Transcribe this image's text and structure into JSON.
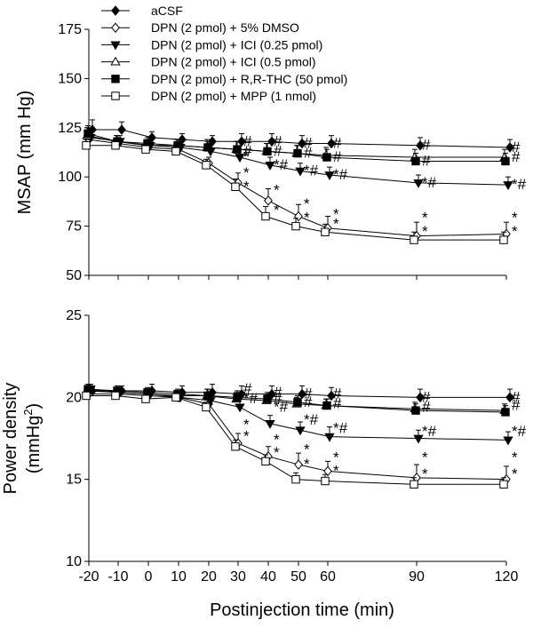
{
  "chart_data": {
    "type": "line",
    "shared_x": [
      -20,
      -10,
      0,
      10,
      20,
      30,
      40,
      50,
      60,
      90,
      120
    ],
    "x_tick_labels": [
      "-20",
      "-10",
      "0",
      "10",
      "20",
      "30",
      "40",
      "50",
      "60",
      "90",
      "120"
    ],
    "xlabel": "Postinjection time (min)",
    "legend": [
      {
        "name": "aCSF",
        "marker": "filled-diamond"
      },
      {
        "name": "DPN (2 pmol) + 5% DMSO",
        "marker": "open-diamond"
      },
      {
        "name": "DPN (2 pmol) + ICI (0.25 pmol)",
        "marker": "filled-triangle-down"
      },
      {
        "name": "DPN (2 pmol) + ICI (0.5 pmol)",
        "marker": "open-triangle-up"
      },
      {
        "name": "DPN (2 pmol) + R,R-THC (50 pmol)",
        "marker": "filled-square"
      },
      {
        "name": "DPN (2 pmol) + MPP (1 nmol)",
        "marker": "open-square"
      }
    ],
    "panels": [
      {
        "ylabel": "MSAP (mm Hg)",
        "ylabel_lines": [
          "MSAP (mm Hg)"
        ],
        "ylim": [
          50,
          175
        ],
        "y_ticks": [
          50,
          75,
          100,
          125,
          150,
          175
        ],
        "y_tick_labels": [
          "50",
          "75",
          "100",
          "125",
          "150",
          "175"
        ],
        "series": [
          {
            "name": "aCSF",
            "values": [
              124,
              124,
              120,
              119,
              118,
              118,
              118,
              117,
              117,
              116,
              115
            ],
            "err": [
              5,
              4,
              3,
              3,
              3,
              4,
              4,
              4,
              4,
              4,
              4
            ]
          },
          {
            "name": "DPN (2 pmol) + 5% DMSO",
            "values": [
              119,
              117,
              115,
              114,
              107,
              97,
              88,
              80,
              74,
              70,
              71
            ],
            "err": [
              4,
              3,
              3,
              3,
              3,
              5,
              6,
              6,
              6,
              7,
              6
            ]
          },
          {
            "name": "DPN (2 pmol) + ICI (0.25 pmol)",
            "values": [
              120,
              118,
              116,
              115,
              113,
              110,
              106,
              103,
              101,
              97,
              96
            ],
            "err": [
              4,
              3,
              3,
              3,
              4,
              4,
              4,
              4,
              4,
              4,
              4
            ]
          },
          {
            "name": "DPN (2 pmol) + ICI (0.5 pmol)",
            "values": [
              121,
              118,
              116,
              116,
              115,
              114,
              113,
              112,
              111,
              110,
              110
            ],
            "err": [
              4,
              3,
              3,
              3,
              4,
              4,
              4,
              4,
              4,
              4,
              4
            ]
          },
          {
            "name": "DPN (2 pmol) + R,R-THC (50 pmol)",
            "values": [
              122,
              118,
              117,
              116,
              115,
              114,
              113,
              112,
              110,
              108,
              108
            ],
            "err": [
              4,
              3,
              3,
              3,
              3,
              4,
              4,
              4,
              4,
              4,
              4
            ]
          },
          {
            "name": "DPN (2 pmol) + MPP (1 nmol)",
            "values": [
              116,
              116,
              114,
              113,
              106,
              95,
              80,
              75,
              72,
              68,
              68
            ],
            "err": [
              3,
              3,
              3,
              3,
              3,
              4,
              5,
              4,
              4,
              4,
              4
            ]
          }
        ],
        "annotations": [
          {
            "x": 30,
            "y": 118,
            "text": "#"
          },
          {
            "x": 30,
            "y": 113,
            "text": "#"
          },
          {
            "x": 30,
            "y": 110,
            "text": "*"
          },
          {
            "x": 30,
            "y": 102,
            "text": "*"
          },
          {
            "x": 30,
            "y": 95,
            "text": "*"
          },
          {
            "x": 40,
            "y": 118,
            "text": "#"
          },
          {
            "x": 40,
            "y": 113,
            "text": "#"
          },
          {
            "x": 40,
            "y": 106,
            "text": "*#"
          },
          {
            "x": 40,
            "y": 93,
            "text": "*"
          },
          {
            "x": 40,
            "y": 83,
            "text": "*"
          },
          {
            "x": 50,
            "y": 117,
            "text": "#"
          },
          {
            "x": 50,
            "y": 112,
            "text": "#"
          },
          {
            "x": 50,
            "y": 103,
            "text": "*#"
          },
          {
            "x": 50,
            "y": 86,
            "text": "*"
          },
          {
            "x": 50,
            "y": 79,
            "text": "*"
          },
          {
            "x": 60,
            "y": 117,
            "text": "#"
          },
          {
            "x": 60,
            "y": 110,
            "text": "#"
          },
          {
            "x": 60,
            "y": 101,
            "text": "*#"
          },
          {
            "x": 60,
            "y": 81,
            "text": "*"
          },
          {
            "x": 60,
            "y": 76,
            "text": "*"
          },
          {
            "x": 90,
            "y": 116,
            "text": "#"
          },
          {
            "x": 90,
            "y": 108,
            "text": "#"
          },
          {
            "x": 90,
            "y": 97,
            "text": "*#"
          },
          {
            "x": 90,
            "y": 79,
            "text": "*"
          },
          {
            "x": 90,
            "y": 72,
            "text": "*"
          },
          {
            "x": 120,
            "y": 115,
            "text": "#"
          },
          {
            "x": 120,
            "y": 110,
            "text": "#"
          },
          {
            "x": 120,
            "y": 96,
            "text": "*#"
          },
          {
            "x": 120,
            "y": 79,
            "text": "*"
          },
          {
            "x": 120,
            "y": 72,
            "text": "*"
          }
        ]
      },
      {
        "ylabel": "Power density (mmHg2)",
        "ylabel_lines": [
          "Power density",
          "(mmHg",
          "2",
          ")"
        ],
        "ylim": [
          10,
          25
        ],
        "y_ticks": [
          10,
          15,
          20,
          25
        ],
        "y_tick_labels": [
          "10",
          "15",
          "20",
          "25"
        ],
        "series": [
          {
            "name": "aCSF",
            "values": [
              20.4,
              20.4,
              20.4,
              20.3,
              20.3,
              20.2,
              20.2,
              20.2,
              20.1,
              20.0,
              20.0
            ],
            "err": [
              0.3,
              0.3,
              0.4,
              0.4,
              0.5,
              0.5,
              0.5,
              0.5,
              0.5,
              0.5,
              0.5
            ]
          },
          {
            "name": "DPN (2 pmol) + 5% DMSO",
            "values": [
              20.2,
              20.2,
              20.1,
              20.0,
              19.6,
              17.2,
              16.4,
              15.9,
              15.5,
              15.1,
              15.0
            ],
            "err": [
              0.3,
              0.3,
              0.3,
              0.4,
              0.4,
              0.6,
              0.6,
              0.7,
              0.6,
              0.8,
              0.8
            ]
          },
          {
            "name": "DPN (2 pmol) + ICI (0.25 pmol)",
            "values": [
              20.5,
              20.3,
              20.2,
              20.0,
              19.8,
              19.4,
              18.4,
              18.0,
              17.6,
              17.5,
              17.4
            ],
            "err": [
              0.3,
              0.3,
              0.3,
              0.3,
              0.5,
              0.5,
              0.5,
              0.5,
              0.6,
              0.5,
              0.5
            ]
          },
          {
            "name": "DPN (2 pmol) + ICI (0.5 pmol)",
            "values": [
              20.4,
              20.3,
              20.2,
              20.1,
              20.1,
              19.9,
              19.8,
              19.6,
              19.5,
              19.3,
              19.2
            ],
            "err": [
              0.3,
              0.3,
              0.3,
              0.3,
              0.4,
              0.4,
              0.4,
              0.4,
              0.4,
              0.4,
              0.4
            ]
          },
          {
            "name": "DPN (2 pmol) + R,R-THC (50 pmol)",
            "values": [
              20.5,
              20.4,
              20.3,
              20.2,
              20.1,
              20.0,
              19.9,
              19.7,
              19.5,
              19.2,
              19.1
            ],
            "err": [
              0.3,
              0.3,
              0.3,
              0.3,
              0.4,
              0.4,
              0.4,
              0.4,
              0.4,
              0.4,
              0.4
            ]
          },
          {
            "name": "DPN (2 pmol) + MPP (1 nmol)",
            "values": [
              20.1,
              20.1,
              19.9,
              20.0,
              19.4,
              17.0,
              16.1,
              15.0,
              14.9,
              14.7,
              14.7
            ],
            "err": [
              0.3,
              0.3,
              0.3,
              0.3,
              0.3,
              0.4,
              0.4,
              0.4,
              0.4,
              0.4,
              0.4
            ]
          }
        ],
        "annotations": [
          {
            "x": 30,
            "y": 20.5,
            "text": "#"
          },
          {
            "x": 30,
            "y": 19.9,
            "text": "*#"
          },
          {
            "x": 30,
            "y": 18.3,
            "text": "*"
          },
          {
            "x": 30,
            "y": 17.6,
            "text": "*"
          },
          {
            "x": 40,
            "y": 20.3,
            "text": "#"
          },
          {
            "x": 40,
            "y": 19.9,
            "text": "#"
          },
          {
            "x": 40,
            "y": 19.4,
            "text": "*#"
          },
          {
            "x": 40,
            "y": 17.4,
            "text": "*"
          },
          {
            "x": 40,
            "y": 16.6,
            "text": "*"
          },
          {
            "x": 50,
            "y": 20.2,
            "text": "#"
          },
          {
            "x": 50,
            "y": 19.7,
            "text": "#"
          },
          {
            "x": 50,
            "y": 18.6,
            "text": "*#"
          },
          {
            "x": 50,
            "y": 16.8,
            "text": "*"
          },
          {
            "x": 50,
            "y": 15.9,
            "text": "*"
          },
          {
            "x": 60,
            "y": 20.2,
            "text": "#"
          },
          {
            "x": 60,
            "y": 19.6,
            "text": "#"
          },
          {
            "x": 60,
            "y": 18.1,
            "text": "*#"
          },
          {
            "x": 60,
            "y": 16.3,
            "text": "*"
          },
          {
            "x": 60,
            "y": 15.5,
            "text": "*"
          },
          {
            "x": 90,
            "y": 20.0,
            "text": "#"
          },
          {
            "x": 90,
            "y": 19.4,
            "text": "#"
          },
          {
            "x": 90,
            "y": 17.9,
            "text": "*#"
          },
          {
            "x": 90,
            "y": 16.3,
            "text": "*"
          },
          {
            "x": 90,
            "y": 15.3,
            "text": "*"
          },
          {
            "x": 120,
            "y": 20.0,
            "text": "#"
          },
          {
            "x": 120,
            "y": 19.5,
            "text": "#"
          },
          {
            "x": 120,
            "y": 17.9,
            "text": "*#"
          },
          {
            "x": 120,
            "y": 16.3,
            "text": "*"
          },
          {
            "x": 120,
            "y": 15.3,
            "text": "*"
          }
        ]
      }
    ]
  }
}
